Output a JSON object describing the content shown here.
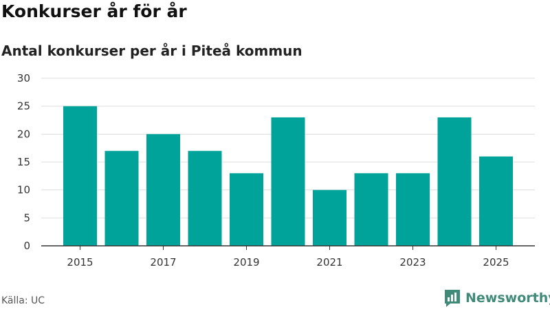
{
  "header": {
    "title": "Konkurser år för år",
    "subtitle": "Antal konkurser per år i Piteå kommun"
  },
  "footer": {
    "source": "Källa: UC",
    "brand": "Newsworthy",
    "brand_color": "#3f8a79"
  },
  "chart_data": {
    "type": "bar",
    "title": "Konkurser år för år",
    "subtitle": "Antal konkurser per år i Piteå kommun",
    "xlabel": "",
    "ylabel": "",
    "categories": [
      "2015",
      "2016",
      "2017",
      "2018",
      "2019",
      "2020",
      "2021",
      "2022",
      "2023",
      "2024",
      "2025"
    ],
    "values": [
      25,
      17,
      20,
      17,
      13,
      23,
      10,
      13,
      13,
      23,
      16
    ],
    "x_tick_labels": [
      "2015",
      "2017",
      "2019",
      "2021",
      "2023",
      "2025"
    ],
    "y_ticks": [
      0,
      5,
      10,
      15,
      20,
      25,
      30
    ],
    "ylim": [
      0,
      30
    ],
    "grid": true,
    "bar_color": "#00a39a"
  }
}
